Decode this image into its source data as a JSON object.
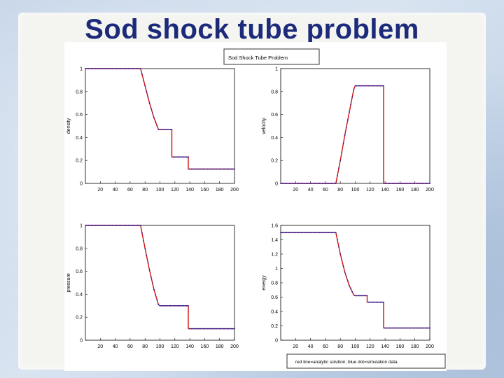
{
  "slide": {
    "title": "Sod shock tube problem"
  },
  "figure": {
    "title": "Sod Shock Tube Problem",
    "legend": "red line=analytic solution; blue dot=simulation data",
    "colors": {
      "analytic": "#cc1111",
      "simulation": "#1a1aa8",
      "title": "#1c2a7a"
    }
  },
  "chart_data": [
    {
      "type": "line",
      "ylabel": "density",
      "xlim": [
        0,
        200
      ],
      "ylim": [
        0,
        1
      ],
      "xticks": [
        20,
        40,
        60,
        80,
        100,
        120,
        140,
        160,
        180,
        200
      ],
      "yticks": [
        0,
        0.2,
        0.4,
        0.6,
        0.8,
        1
      ],
      "series": [
        {
          "x": [
            0,
            74,
            80,
            86,
            92,
            98,
            100,
            110,
            116,
            116,
            124,
            132,
            138,
            138,
            200
          ],
          "y": [
            1,
            1,
            0.85,
            0.7,
            0.57,
            0.47,
            0.47,
            0.47,
            0.47,
            0.23,
            0.23,
            0.23,
            0.23,
            0.125,
            0.125
          ]
        }
      ]
    },
    {
      "type": "line",
      "ylabel": "velocity",
      "xlim": [
        0,
        200
      ],
      "ylim": [
        0,
        1
      ],
      "xticks": [
        20,
        40,
        60,
        80,
        100,
        120,
        140,
        160,
        180,
        200
      ],
      "yticks": [
        0,
        0.2,
        0.4,
        0.6,
        0.8,
        1
      ],
      "series": [
        {
          "x": [
            0,
            74,
            80,
            86,
            92,
            98,
            100,
            110,
            120,
            130,
            138,
            138,
            200
          ],
          "y": [
            0,
            0,
            0.2,
            0.42,
            0.62,
            0.82,
            0.85,
            0.85,
            0.85,
            0.85,
            0.85,
            0,
            0
          ]
        }
      ]
    },
    {
      "type": "line",
      "ylabel": "pressure",
      "xlim": [
        0,
        200
      ],
      "ylim": [
        0,
        1
      ],
      "xticks": [
        20,
        40,
        60,
        80,
        100,
        120,
        140,
        160,
        180,
        200
      ],
      "yticks": [
        0,
        0.2,
        0.4,
        0.6,
        0.8,
        1
      ],
      "series": [
        {
          "x": [
            0,
            74,
            80,
            86,
            92,
            98,
            100,
            110,
            120,
            130,
            138,
            138,
            200
          ],
          "y": [
            1,
            1,
            0.8,
            0.61,
            0.44,
            0.31,
            0.3,
            0.3,
            0.3,
            0.3,
            0.3,
            0.1,
            0.1
          ]
        }
      ]
    },
    {
      "type": "line",
      "ylabel": "energy",
      "xlim": [
        0,
        200
      ],
      "ylim": [
        0,
        1.6
      ],
      "xticks": [
        20,
        40,
        60,
        80,
        100,
        120,
        140,
        160,
        180,
        200
      ],
      "yticks": [
        0,
        0.2,
        0.4,
        0.6,
        0.8,
        1,
        1.2,
        1.4,
        1.6
      ],
      "series": [
        {
          "x": [
            0,
            74,
            80,
            86,
            92,
            98,
            100,
            110,
            116,
            116,
            124,
            132,
            138,
            138,
            200
          ],
          "y": [
            1.5,
            1.5,
            1.2,
            0.95,
            0.76,
            0.63,
            0.62,
            0.62,
            0.62,
            0.53,
            0.53,
            0.53,
            0.53,
            0.17,
            0.17
          ]
        }
      ]
    }
  ]
}
